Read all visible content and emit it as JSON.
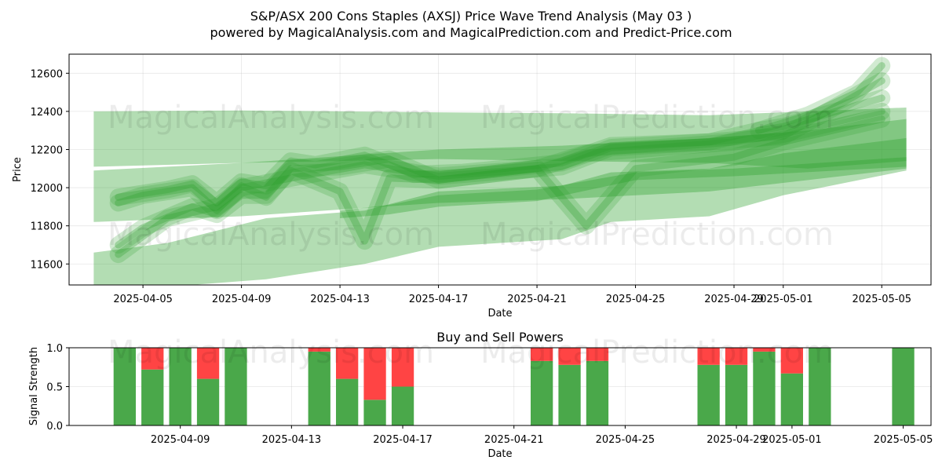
{
  "title_line1": "S&P/ASX 200 Cons Staples (AXSJ) Price Wave Trend Analysis (May 03 )",
  "title_line2": "powered by MagicalAnalysis.com and MagicalPrediction.com and Predict-Price.com",
  "watermarks": [
    "MagicalAnalysis.com",
    "MagicalPrediction.com"
  ],
  "colors": {
    "band": "#2ca02c",
    "buy": "#4aa84a",
    "sell": "#ff4444"
  },
  "chart_data": [
    {
      "type": "area",
      "title": "",
      "xlabel": "Date",
      "ylabel": "Price",
      "xlim": [
        "2025-04-02",
        "2025-05-07"
      ],
      "ylim": [
        11490,
        12700
      ],
      "x_tick_labels": [
        "2025-04-05",
        "2025-04-09",
        "2025-04-13",
        "2025-04-17",
        "2025-04-21",
        "2025-04-25",
        "2025-04-29",
        "2025-05-01",
        "2025-05-05"
      ],
      "y_ticks": [
        11600,
        11800,
        12000,
        12200,
        12400,
        12600
      ],
      "grid": true,
      "bands": [
        {
          "x": [
            "2025-04-03",
            "2025-04-09",
            "2025-04-17",
            "2025-04-22",
            "2025-04-28",
            "2025-05-02",
            "2025-05-06"
          ],
          "upper": [
            12400,
            12405,
            12395,
            12390,
            12380,
            12400,
            12420
          ],
          "lower": [
            12110,
            12130,
            12150,
            12140,
            12130,
            12100,
            12140
          ]
        },
        {
          "x": [
            "2025-04-03",
            "2025-04-09",
            "2025-04-17",
            "2025-04-22",
            "2025-04-28",
            "2025-05-02",
            "2025-05-06"
          ],
          "upper": [
            12090,
            12130,
            12200,
            12220,
            12260,
            12300,
            12360
          ],
          "lower": [
            11820,
            11850,
            11920,
            11940,
            11980,
            12040,
            12100
          ]
        },
        {
          "x": [
            "2025-04-03",
            "2025-04-06",
            "2025-04-10",
            "2025-04-14",
            "2025-04-17",
            "2025-04-22",
            "2025-04-24",
            "2025-04-28",
            "2025-05-01",
            "2025-05-06"
          ],
          "upper": [
            11660,
            11710,
            11840,
            11880,
            11980,
            12010,
            12080,
            12100,
            12180,
            12260
          ],
          "lower": [
            11480,
            11480,
            11520,
            11600,
            11690,
            11730,
            11820,
            11850,
            11960,
            12090
          ]
        },
        {
          "x": [
            "2025-04-13",
            "2025-04-15",
            "2025-04-17",
            "2025-04-21",
            "2025-04-25",
            "2025-04-29",
            "2025-05-06"
          ],
          "upper": [
            11880,
            11910,
            11960,
            11990,
            12080,
            12100,
            12160
          ],
          "lower": [
            11840,
            11860,
            11900,
            11930,
            12040,
            12060,
            12110
          ]
        }
      ],
      "waves": [
        {
          "x": [
            "2025-04-04",
            "2025-04-06",
            "2025-04-07",
            "2025-04-08",
            "2025-04-09",
            "2025-04-10",
            "2025-04-11",
            "2025-04-12",
            "2025-04-14",
            "2025-04-15",
            "2025-04-16",
            "2025-04-18",
            "2025-04-22",
            "2025-04-24",
            "2025-04-28",
            "2025-04-30",
            "2025-05-01",
            "2025-05-05"
          ],
          "y": [
            11950,
            11990,
            12020,
            11920,
            12030,
            12010,
            12140,
            12120,
            12170,
            12120,
            12070,
            12080,
            12130,
            12220,
            12240,
            12300,
            12320,
            12470
          ]
        },
        {
          "x": [
            "2025-04-04",
            "2025-04-05",
            "2025-04-07",
            "2025-04-08",
            "2025-04-09",
            "2025-04-10",
            "2025-04-11",
            "2025-04-13",
            "2025-04-15",
            "2025-04-17",
            "2025-04-21",
            "2025-04-23",
            "2025-04-25",
            "2025-04-29",
            "2025-05-01",
            "2025-05-05"
          ],
          "y": [
            11920,
            11960,
            12000,
            11880,
            12010,
            11950,
            12100,
            12110,
            12150,
            12040,
            12100,
            12180,
            12200,
            12240,
            12280,
            12400
          ]
        },
        {
          "x": [
            "2025-04-04",
            "2025-04-05",
            "2025-04-07",
            "2025-04-08",
            "2025-04-09",
            "2025-04-10",
            "2025-04-11",
            "2025-04-13",
            "2025-04-14",
            "2025-04-15",
            "2025-04-17",
            "2025-04-21",
            "2025-04-23",
            "2025-04-25",
            "2025-04-29",
            "2025-05-01",
            "2025-05-05"
          ],
          "y": [
            11700,
            11790,
            11900,
            11860,
            11960,
            11960,
            12090,
            11980,
            11720,
            12050,
            12040,
            12100,
            11800,
            12100,
            12160,
            12240,
            12360
          ]
        },
        {
          "x": [
            "2025-04-04",
            "2025-04-06",
            "2025-04-08",
            "2025-04-09",
            "2025-04-11",
            "2025-04-14",
            "2025-04-17",
            "2025-04-22",
            "2025-04-24",
            "2025-04-28",
            "2025-05-01",
            "2025-05-05"
          ],
          "y": [
            11650,
            11840,
            11900,
            12000,
            12050,
            12120,
            12060,
            12110,
            12210,
            12240,
            12270,
            12560
          ]
        },
        {
          "x": [
            "2025-04-30",
            "2025-05-02",
            "2025-05-04",
            "2025-05-05"
          ],
          "y": [
            12300,
            12380,
            12500,
            12640
          ]
        }
      ]
    },
    {
      "type": "bar",
      "title": "Buy and Sell Powers",
      "xlabel": "Date",
      "ylabel": "Signal Strength",
      "xlim": [
        "2025-04-05",
        "2025-05-06"
      ],
      "ylim": [
        0,
        1
      ],
      "x_tick_labels": [
        "2025-04-09",
        "2025-04-13",
        "2025-04-17",
        "2025-04-21",
        "2025-04-25",
        "2025-04-29",
        "2025-05-01",
        "2025-05-05"
      ],
      "y_ticks": [
        "0.0",
        "0.5",
        "1.0"
      ],
      "grid": true,
      "dates": [
        "2025-04-07",
        "2025-04-08",
        "2025-04-09",
        "2025-04-10",
        "2025-04-11",
        "2025-04-14",
        "2025-04-15",
        "2025-04-16",
        "2025-04-17",
        "2025-04-22",
        "2025-04-23",
        "2025-04-24",
        "2025-04-28",
        "2025-04-29",
        "2025-04-30",
        "2025-05-01",
        "2025-05-02",
        "2025-05-05"
      ],
      "buy": [
        1.0,
        0.72,
        1.0,
        0.6,
        1.0,
        0.95,
        0.6,
        0.33,
        0.5,
        0.83,
        0.78,
        0.83,
        0.78,
        0.78,
        0.95,
        0.67,
        1.0,
        1.0
      ],
      "sell": [
        0.0,
        0.28,
        0.0,
        0.4,
        0.0,
        0.05,
        0.4,
        0.67,
        0.5,
        0.17,
        0.22,
        0.17,
        0.22,
        0.22,
        0.05,
        0.33,
        0.0,
        0.0
      ]
    }
  ]
}
